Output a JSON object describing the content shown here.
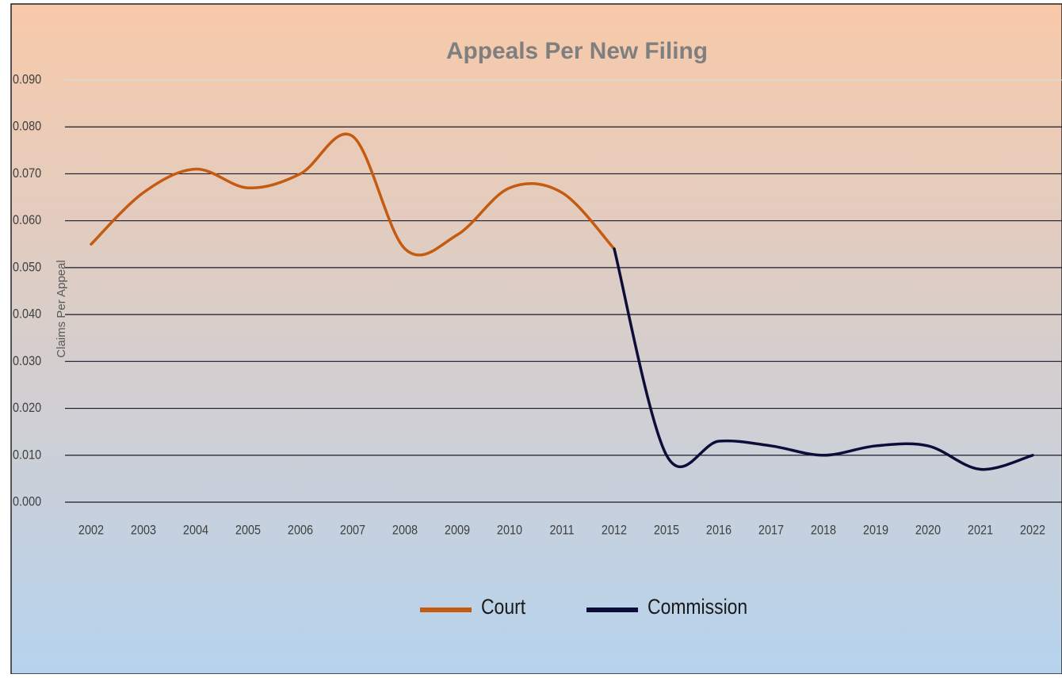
{
  "chart_data": {
    "type": "line",
    "title": "Appeals Per New Filing",
    "y_label": "Claims Per Appeal",
    "categories": [
      "2002",
      "2003",
      "2004",
      "2005",
      "2006",
      "2007",
      "2008",
      "2009",
      "2010",
      "2011",
      "2012",
      "2015",
      "2016",
      "2017",
      "2018",
      "2019",
      "2020",
      "2021",
      "2022"
    ],
    "series": [
      {
        "name": "Court",
        "color": "#c55a11",
        "values": [
          0.055,
          0.066,
          0.071,
          0.067,
          0.07,
          0.078,
          0.054,
          0.057,
          0.067,
          0.066,
          0.054,
          null,
          null,
          null,
          null,
          null,
          null,
          null,
          null
        ]
      },
      {
        "name": "Commission",
        "color": "#0d0d3a",
        "values": [
          null,
          null,
          null,
          null,
          null,
          null,
          null,
          null,
          null,
          null,
          0.054,
          0.01,
          0.013,
          0.012,
          0.01,
          0.012,
          0.012,
          0.007,
          0.01
        ]
      }
    ],
    "ylim": [
      0,
      0.09
    ],
    "yticks": [
      {
        "value": 0,
        "label": "0.000"
      },
      {
        "value": 0.01,
        "label": "0.010"
      },
      {
        "value": 0.02,
        "label": "0.020"
      },
      {
        "value": 0.03,
        "label": "0.030"
      },
      {
        "value": 0.04,
        "label": "0.040"
      },
      {
        "value": 0.05,
        "label": "0.050"
      },
      {
        "value": 0.06,
        "label": "0.060"
      },
      {
        "value": 0.07,
        "label": "0.070"
      },
      {
        "value": 0.08,
        "label": "0.080"
      },
      {
        "value": 0.09,
        "label": "0.090"
      }
    ],
    "grid": true,
    "legend": "bottom"
  }
}
